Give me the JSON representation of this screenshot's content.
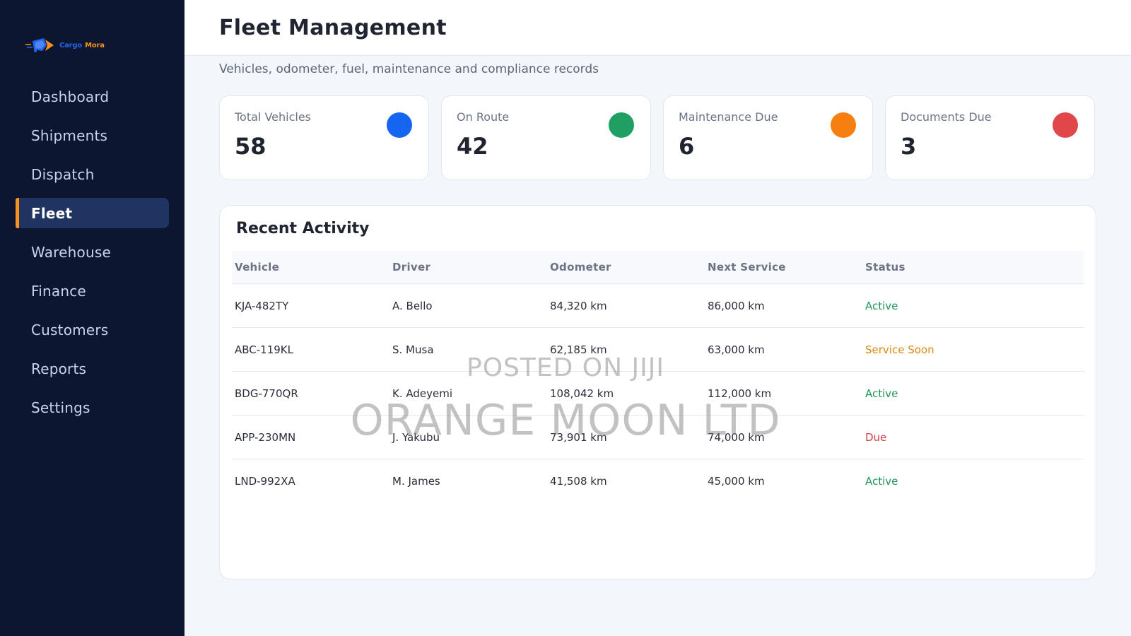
{
  "brand": {
    "name_part1": "Cargo",
    "name_part2": "Mora",
    "colors": {
      "blue": "#2463eb",
      "orange": "#f7931a"
    }
  },
  "sidebar": {
    "items": [
      {
        "label": "Dashboard",
        "active": false
      },
      {
        "label": "Shipments",
        "active": false
      },
      {
        "label": "Dispatch",
        "active": false
      },
      {
        "label": "Fleet",
        "active": true
      },
      {
        "label": "Warehouse",
        "active": false
      },
      {
        "label": "Finance",
        "active": false
      },
      {
        "label": "Customers",
        "active": false
      },
      {
        "label": "Reports",
        "active": false
      },
      {
        "label": "Settings",
        "active": false
      }
    ]
  },
  "header": {
    "title": "Fleet Management",
    "subtitle": "Vehicles, odometer, fuel, maintenance and compliance records"
  },
  "stats": [
    {
      "label": "Total Vehicles",
      "value": "58",
      "color": "#1565f0"
    },
    {
      "label": "On Route",
      "value": "42",
      "color": "#1fa062"
    },
    {
      "label": "Maintenance Due",
      "value": "6",
      "color": "#f77f0e"
    },
    {
      "label": "Documents Due",
      "value": "3",
      "color": "#e0474a"
    }
  ],
  "activity": {
    "title": "Recent Activity",
    "columns": [
      "Vehicle",
      "Driver",
      "Odometer",
      "Next Service",
      "Status"
    ],
    "rows": [
      {
        "vehicle": "KJA-482TY",
        "driver": "A. Bello",
        "odometer": "84,320 km",
        "next_service": "86,000 km",
        "status": "Active",
        "status_type": "active"
      },
      {
        "vehicle": "ABC-119KL",
        "driver": "S. Musa",
        "odometer": "62,185 km",
        "next_service": "63,000 km",
        "status": "Service Soon",
        "status_type": "soon"
      },
      {
        "vehicle": "BDG-770QR",
        "driver": "K. Adeyemi",
        "odometer": "108,042 km",
        "next_service": "112,000 km",
        "status": "Active",
        "status_type": "active"
      },
      {
        "vehicle": "APP-230MN",
        "driver": "J. Yakubu",
        "odometer": "73,901 km",
        "next_service": "74,000 km",
        "status": "Due",
        "status_type": "due"
      },
      {
        "vehicle": "LND-992XA",
        "driver": "M. James",
        "odometer": "41,508 km",
        "next_service": "45,000 km",
        "status": "Active",
        "status_type": "active"
      }
    ]
  },
  "watermark": {
    "line1": "POSTED ON JIJI",
    "line2": "ORANGE MOON LTD"
  }
}
